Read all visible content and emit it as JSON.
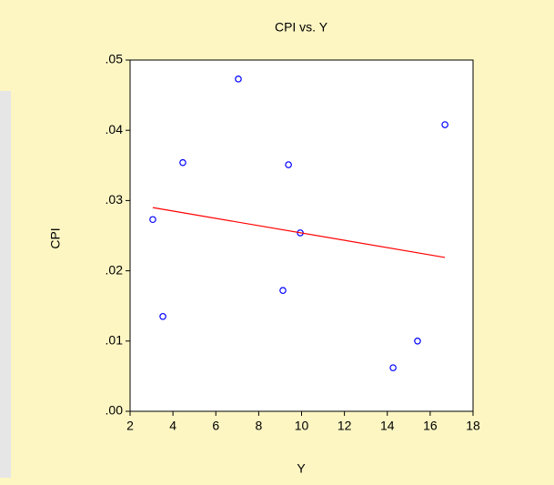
{
  "chart_data": {
    "type": "scatter",
    "title": "CPI vs. Y",
    "xlabel": "Y",
    "ylabel": "CPI",
    "series": [
      {
        "color": "#0000ff",
        "x": [
          3.06,
          3.53,
          4.46,
          7.05,
          9.39,
          9.13,
          9.94,
          14.27,
          15.41,
          16.69
        ],
        "values": [
          0.0273,
          0.0135,
          0.0354,
          0.0473,
          0.0351,
          0.0172,
          0.0254,
          0.0062,
          0.01,
          0.0408
        ]
      }
    ],
    "fit_line": {
      "color": "#ff0000",
      "x": [
        3.06,
        16.69
      ],
      "values": [
        0.029,
        0.0219
      ]
    },
    "xlim": [
      2,
      18
    ],
    "xticks": [
      2,
      4,
      6,
      8,
      10,
      12,
      14,
      16,
      18
    ],
    "ylim": [
      0,
      0.05
    ],
    "yticks": [
      {
        "value": 0,
        "label": ".00"
      },
      {
        "value": 0.01,
        "label": ".01"
      },
      {
        "value": 0.02,
        "label": ".02"
      },
      {
        "value": 0.03,
        "label": ".03"
      },
      {
        "value": 0.04,
        "label": ".04"
      },
      {
        "value": 0.05,
        "label": ".05"
      }
    ]
  }
}
